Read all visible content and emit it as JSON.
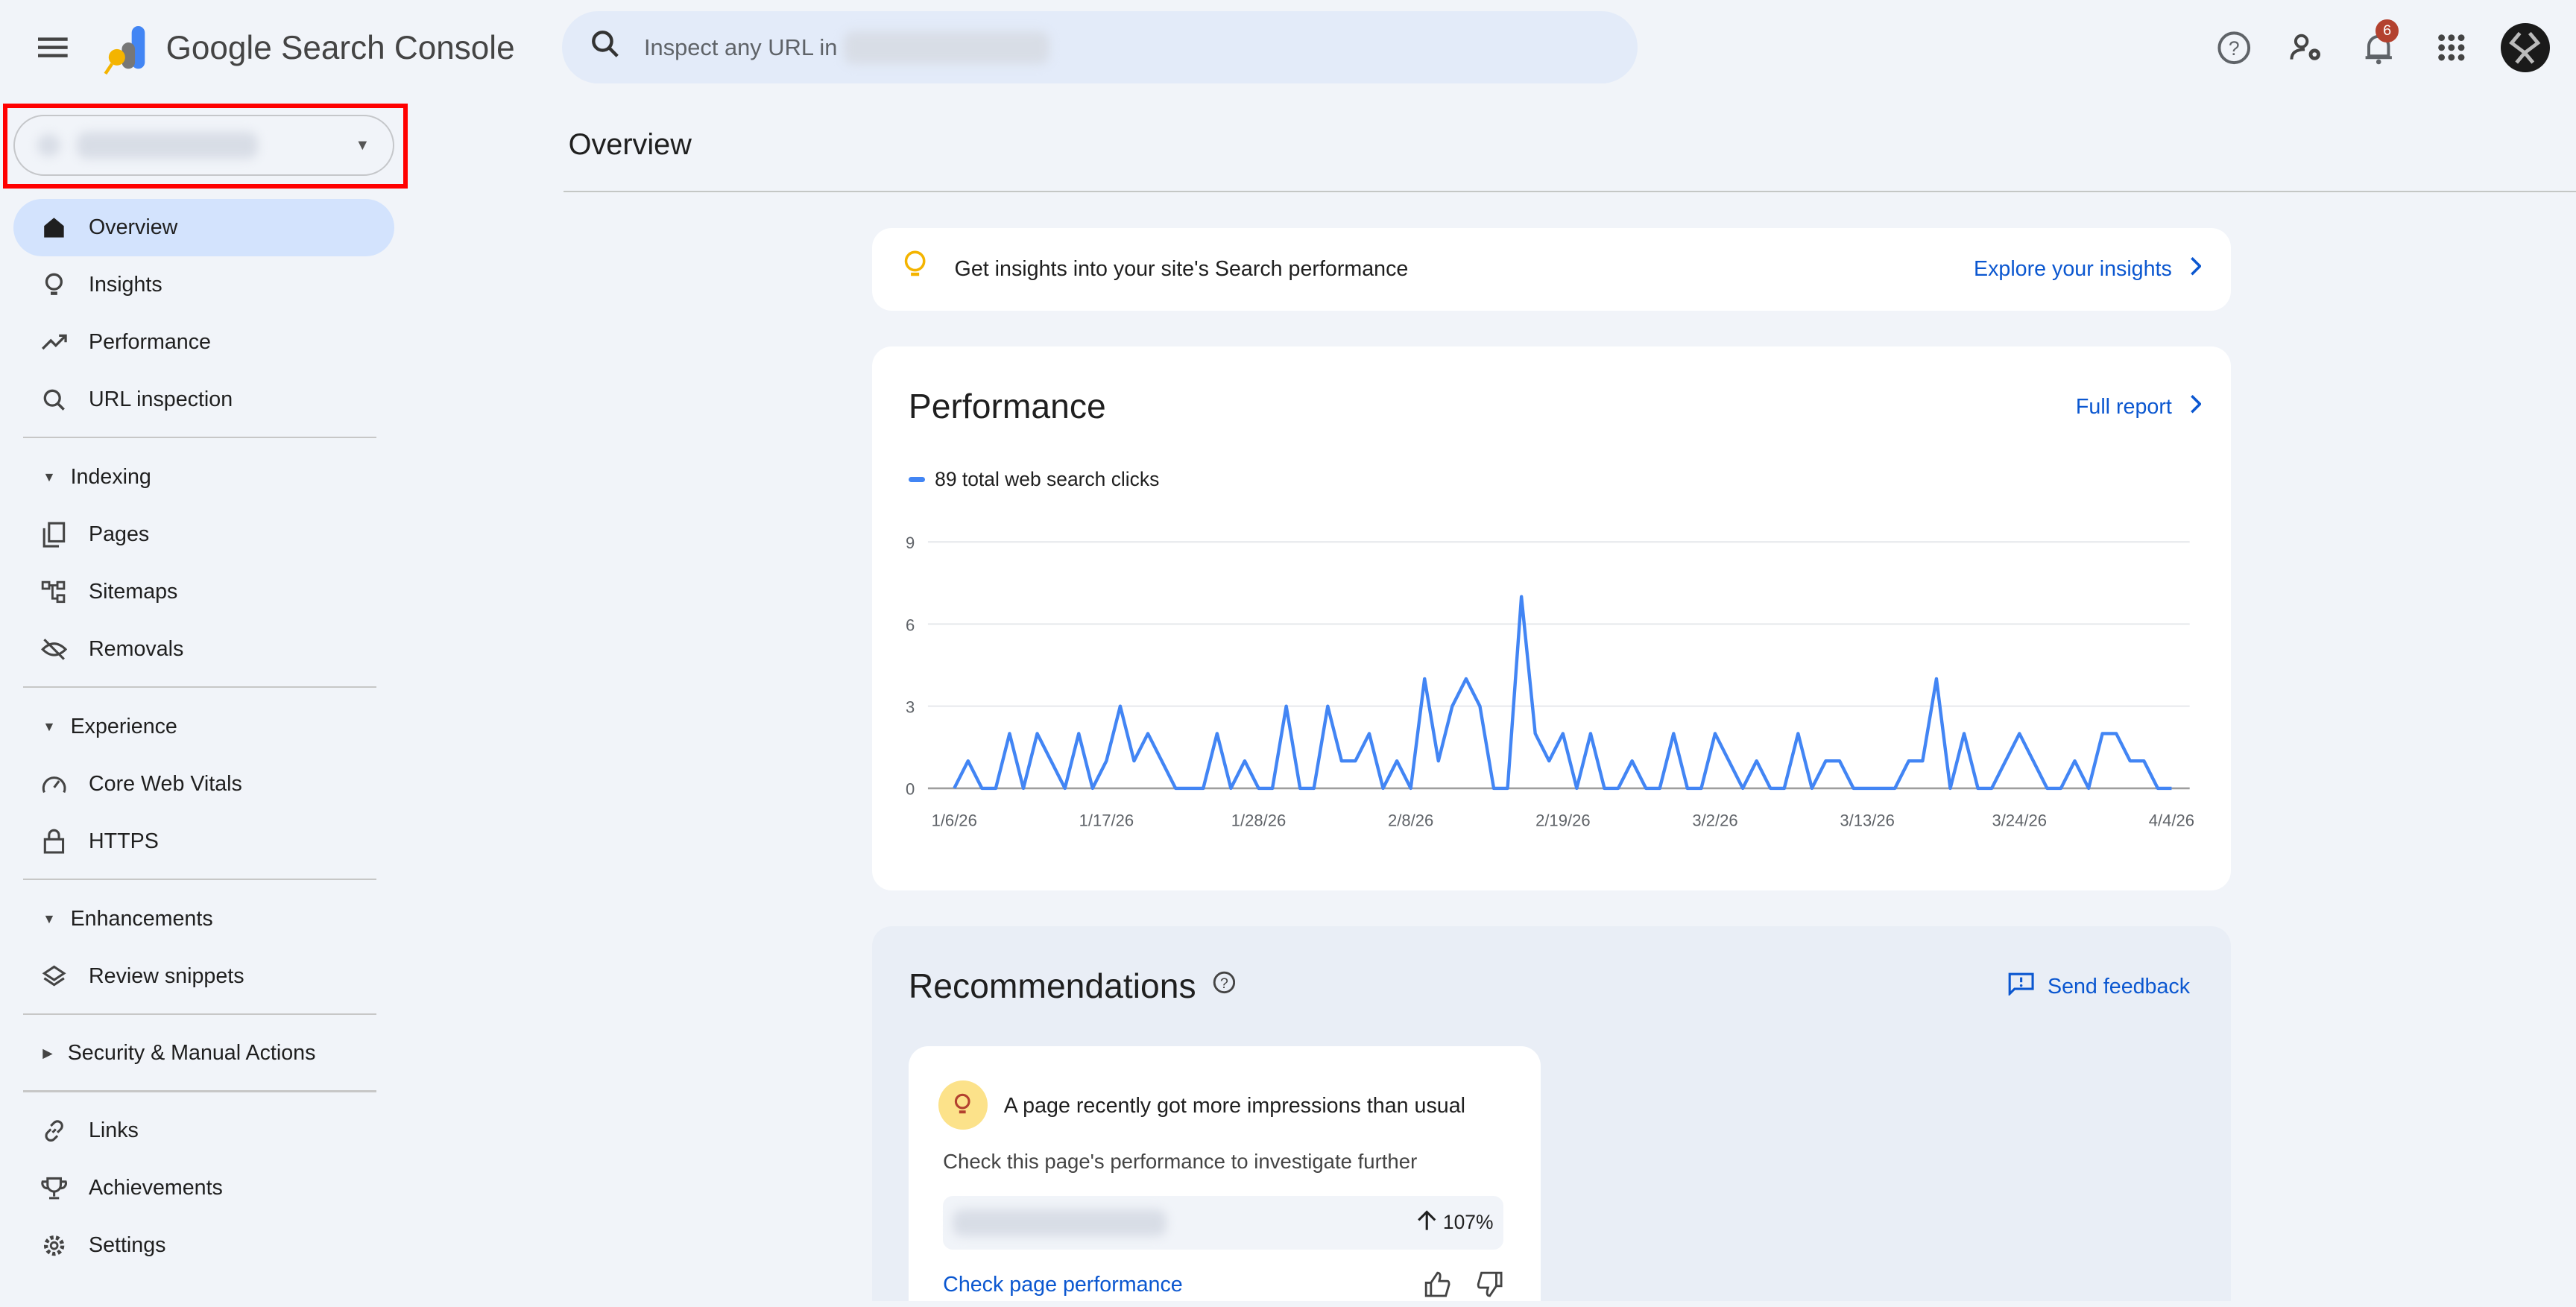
{
  "header": {
    "app_name": "Google Search Console",
    "search_placeholder": "Inspect any URL in",
    "notification_count": "6"
  },
  "sidebar": {
    "items": [
      {
        "label": "Overview",
        "icon": "home-icon",
        "active": true
      },
      {
        "label": "Insights",
        "icon": "lightbulb-icon"
      },
      {
        "label": "Performance",
        "icon": "trending-up-icon"
      },
      {
        "label": "URL inspection",
        "icon": "search-icon"
      }
    ],
    "sections": [
      {
        "label": "Indexing",
        "expanded": true,
        "items": [
          {
            "label": "Pages",
            "icon": "pages-icon"
          },
          {
            "label": "Sitemaps",
            "icon": "sitemap-icon"
          },
          {
            "label": "Removals",
            "icon": "eye-off-icon"
          }
        ]
      },
      {
        "label": "Experience",
        "expanded": true,
        "items": [
          {
            "label": "Core Web Vitals",
            "icon": "speedometer-icon"
          },
          {
            "label": "HTTPS",
            "icon": "lock-icon"
          }
        ]
      },
      {
        "label": "Enhancements",
        "expanded": true,
        "items": [
          {
            "label": "Review snippets",
            "icon": "layers-icon"
          }
        ]
      },
      {
        "label": "Security & Manual Actions",
        "expanded": false,
        "items": []
      }
    ],
    "bottom": [
      {
        "label": "Links",
        "icon": "link-icon"
      },
      {
        "label": "Achievements",
        "icon": "trophy-icon"
      },
      {
        "label": "Settings",
        "icon": "gear-icon"
      }
    ]
  },
  "main": {
    "title": "Overview",
    "insight": {
      "text": "Get insights into your site's Search performance",
      "link": "Explore your insights"
    },
    "performance": {
      "title": "Performance",
      "link": "Full report",
      "legend": "89 total web search clicks"
    },
    "recommendations": {
      "title": "Recommendations",
      "feedback": "Send feedback",
      "card": {
        "title": "A page recently got more impressions than usual",
        "desc": "Check this page's performance to investigate further",
        "change": "107%",
        "action": "Check page performance"
      }
    }
  },
  "colors": {
    "accent": "#0b57d0",
    "series": "#4285f4",
    "active_nav": "#d3e3fd",
    "badge": "#b3412f"
  },
  "chart_data": {
    "type": "line",
    "title": "",
    "series": [
      {
        "name": "89 total web search clicks",
        "values": [
          0,
          1,
          0,
          0,
          2,
          0,
          2,
          1,
          0,
          2,
          0,
          1,
          3,
          1,
          2,
          1,
          0,
          0,
          0,
          2,
          0,
          1,
          0,
          0,
          3,
          0,
          0,
          3,
          1,
          1,
          2,
          0,
          1,
          0,
          4,
          1,
          3,
          4,
          3,
          0,
          0,
          7,
          2,
          1,
          2,
          0,
          2,
          0,
          0,
          1,
          0,
          0,
          2,
          0,
          0,
          2,
          1,
          0,
          1,
          0,
          0,
          2,
          0,
          1,
          1,
          0,
          0,
          0,
          0,
          1,
          1,
          4,
          0,
          2,
          0,
          0,
          1,
          2,
          1,
          0,
          0,
          1,
          0,
          2,
          2,
          1,
          1,
          0,
          0
        ]
      }
    ],
    "x_start": "1/6/26",
    "x_end": "4/4/26",
    "x_ticks": [
      "1/6/26",
      "1/17/26",
      "1/28/26",
      "2/8/26",
      "2/19/26",
      "3/2/26",
      "3/13/26",
      "3/24/26",
      "4/4/26"
    ],
    "y_ticks": [
      "0",
      "3",
      "6",
      "9"
    ],
    "ylim": [
      0,
      9
    ],
    "grid": true,
    "legend": "top-left"
  }
}
